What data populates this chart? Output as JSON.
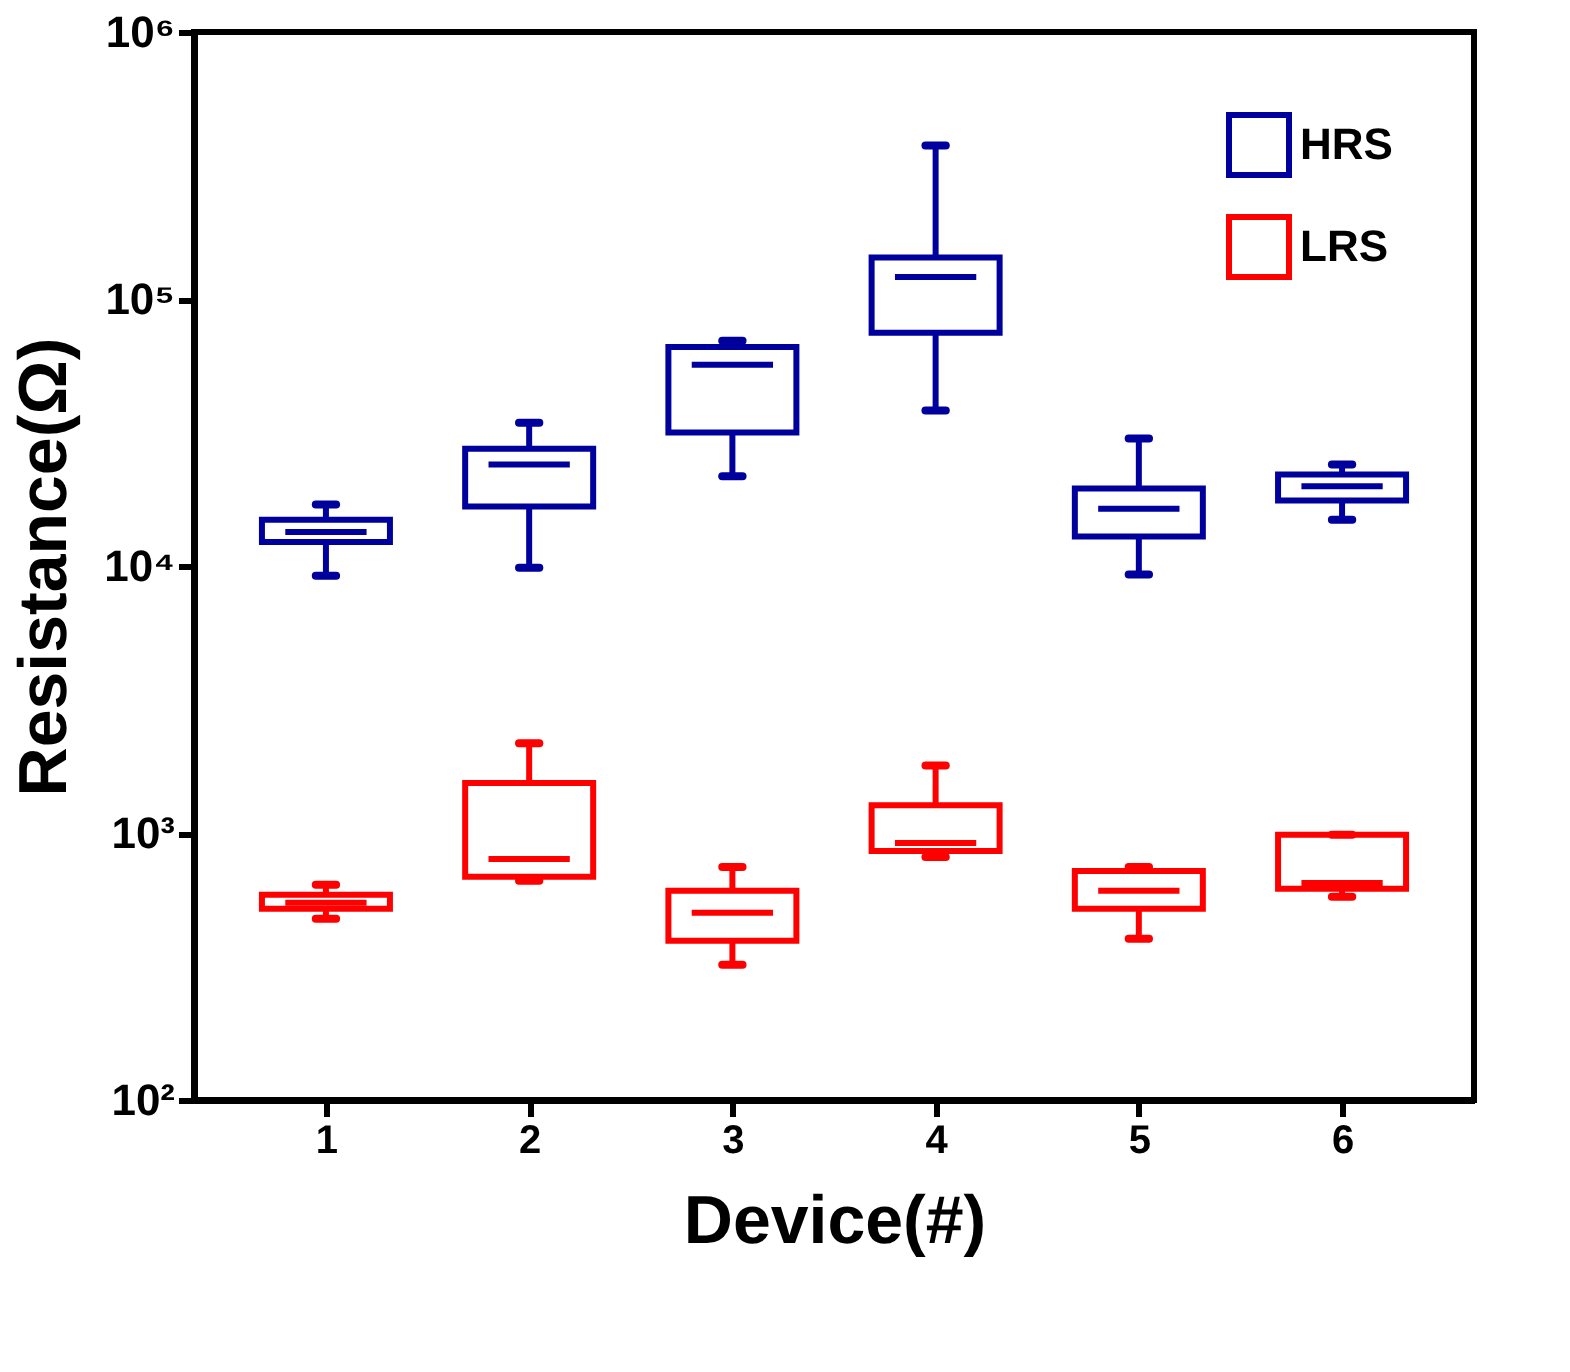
{
  "chart_data": {
    "type": "box",
    "xlabel": "Device(#)",
    "ylabel": "Resistance(Ω)",
    "categories": [
      "1",
      "2",
      "3",
      "4",
      "5",
      "6"
    ],
    "log": "y",
    "ylim": [
      100,
      1000000
    ],
    "yticks": [
      {
        "value": 100,
        "label": "10²"
      },
      {
        "value": 1000,
        "label": "10³"
      },
      {
        "value": 10000,
        "label": "10⁴"
      },
      {
        "value": 100000,
        "label": "10⁵"
      },
      {
        "value": 1000000,
        "label": "10⁶"
      }
    ],
    "grid": false,
    "legend": "top right",
    "series": [
      {
        "name": "HRS",
        "color": "#00009c",
        "boxes": [
          {
            "low": 9200,
            "q1": 12300,
            "median": 13400,
            "q3": 14900,
            "high": 17000
          },
          {
            "low": 9850,
            "q1": 16700,
            "median": 24000,
            "q3": 27500,
            "high": 34400
          },
          {
            "low": 21700,
            "q1": 31600,
            "median": 56700,
            "q3": 66100,
            "high": 69700
          },
          {
            "low": 38200,
            "q1": 74700,
            "median": 121000,
            "q3": 143000,
            "high": 376000
          },
          {
            "low": 9300,
            "q1": 12900,
            "median": 16400,
            "q3": 19500,
            "high": 30000
          },
          {
            "low": 14900,
            "q1": 17600,
            "median": 19900,
            "q3": 22000,
            "high": 24000
          }
        ]
      },
      {
        "name": "LRS",
        "color": "#ff0000",
        "boxes": [
          {
            "low": 477,
            "q1": 520,
            "median": 548,
            "q3": 587,
            "high": 640
          },
          {
            "low": 662,
            "q1": 686,
            "median": 800,
            "q3": 1540,
            "high": 2170
          },
          {
            "low": 321,
            "q1": 395,
            "median": 503,
            "q3": 608,
            "high": 746
          },
          {
            "low": 813,
            "q1": 857,
            "median": 918,
            "q3": 1270,
            "high": 1790
          },
          {
            "low": 402,
            "q1": 520,
            "median": 608,
            "q3": 721,
            "high": 746
          },
          {
            "low": 577,
            "q1": 618,
            "median": 650,
            "q3": 985,
            "high": 985
          }
        ]
      }
    ]
  }
}
